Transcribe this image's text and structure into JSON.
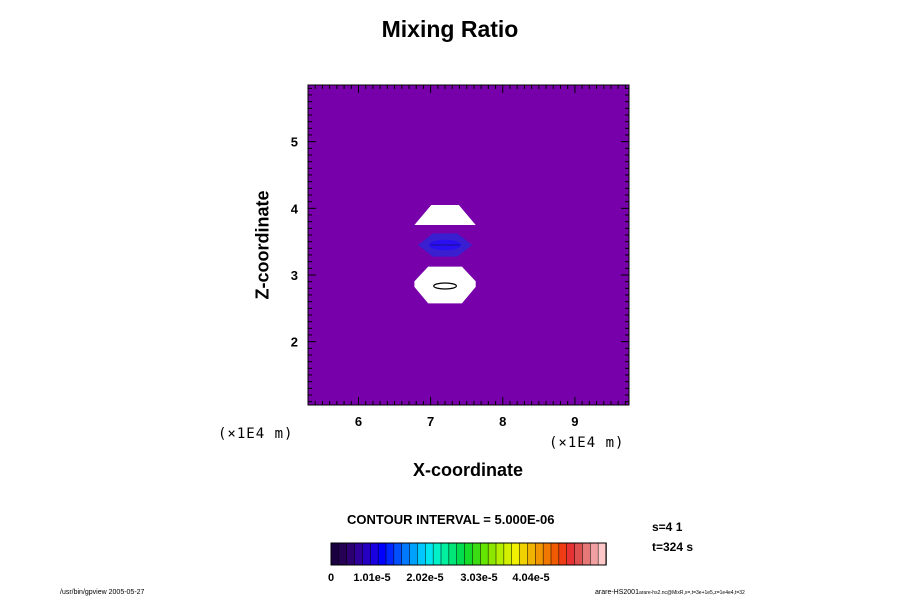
{
  "chart_data": {
    "type": "heatmap",
    "title": "Mixing Ratio",
    "xlabel": "X-coordinate",
    "ylabel": "Z-coordinate",
    "x_unit_label": "(×1E4 m)",
    "y_unit_label": "(×1E4 m)",
    "xlim": [
      5.3,
      9.75
    ],
    "ylim": [
      1.05,
      5.85
    ],
    "x_ticks": [
      6,
      7,
      8,
      9
    ],
    "y_ticks": [
      2,
      3,
      4,
      5
    ],
    "background_value": 0,
    "features": [
      {
        "kind": "white_region",
        "x_center": 7.2,
        "z_center": 3.9,
        "x_width": 0.85,
        "z_height": 0.3,
        "shape": "trapezoid"
      },
      {
        "kind": "contour_blob",
        "x_center": 7.2,
        "z_center": 3.45,
        "x_width": 0.75,
        "z_height": 0.35,
        "value": 5e-06
      },
      {
        "kind": "white_region",
        "x_center": 7.2,
        "z_center": 2.85,
        "x_width": 0.85,
        "z_height": 0.55,
        "shape": "octagon"
      }
    ],
    "colorbar": {
      "label": "CONTOUR INTERVAL = 5.000E-06",
      "min": 0,
      "max": 5.05e-05,
      "tick_labels": [
        "0",
        "1.01e-5",
        "2.02e-5",
        "3.03e-5",
        "4.04e-5"
      ],
      "colors": [
        "#1a0040",
        "#250055",
        "#2c0070",
        "#30009a",
        "#2600c0",
        "#1a00e0",
        "#0000ff",
        "#0026ff",
        "#0050ff",
        "#0078ff",
        "#00a0ff",
        "#00c8ff",
        "#00e6f0",
        "#00f0c8",
        "#00f0a0",
        "#00e678",
        "#00dc50",
        "#14dc28",
        "#3cdc14",
        "#64e600",
        "#8ce600",
        "#b4ef00",
        "#d2f000",
        "#f0f000",
        "#f0d200",
        "#f0b400",
        "#f09600",
        "#f07800",
        "#f05a00",
        "#f03c14",
        "#e63232",
        "#dc5050",
        "#e67878",
        "#f0a0a0",
        "#ffc8c8"
      ]
    },
    "grid": false
  },
  "annotations": {
    "step": "s=4 1",
    "time": "t=324 s"
  },
  "footer": {
    "left": "/usr/bin/gpview 2005-05-27",
    "right_main": "arare-HS2001",
    "right_small": "arare-hs2.nc@MixR,x=,t=3e+1e5,z=1e4e4,t=32"
  },
  "colors": {
    "background_fill": "#7700aa",
    "blob_color": "#3a1fd0",
    "white_region": "#ffffff"
  }
}
